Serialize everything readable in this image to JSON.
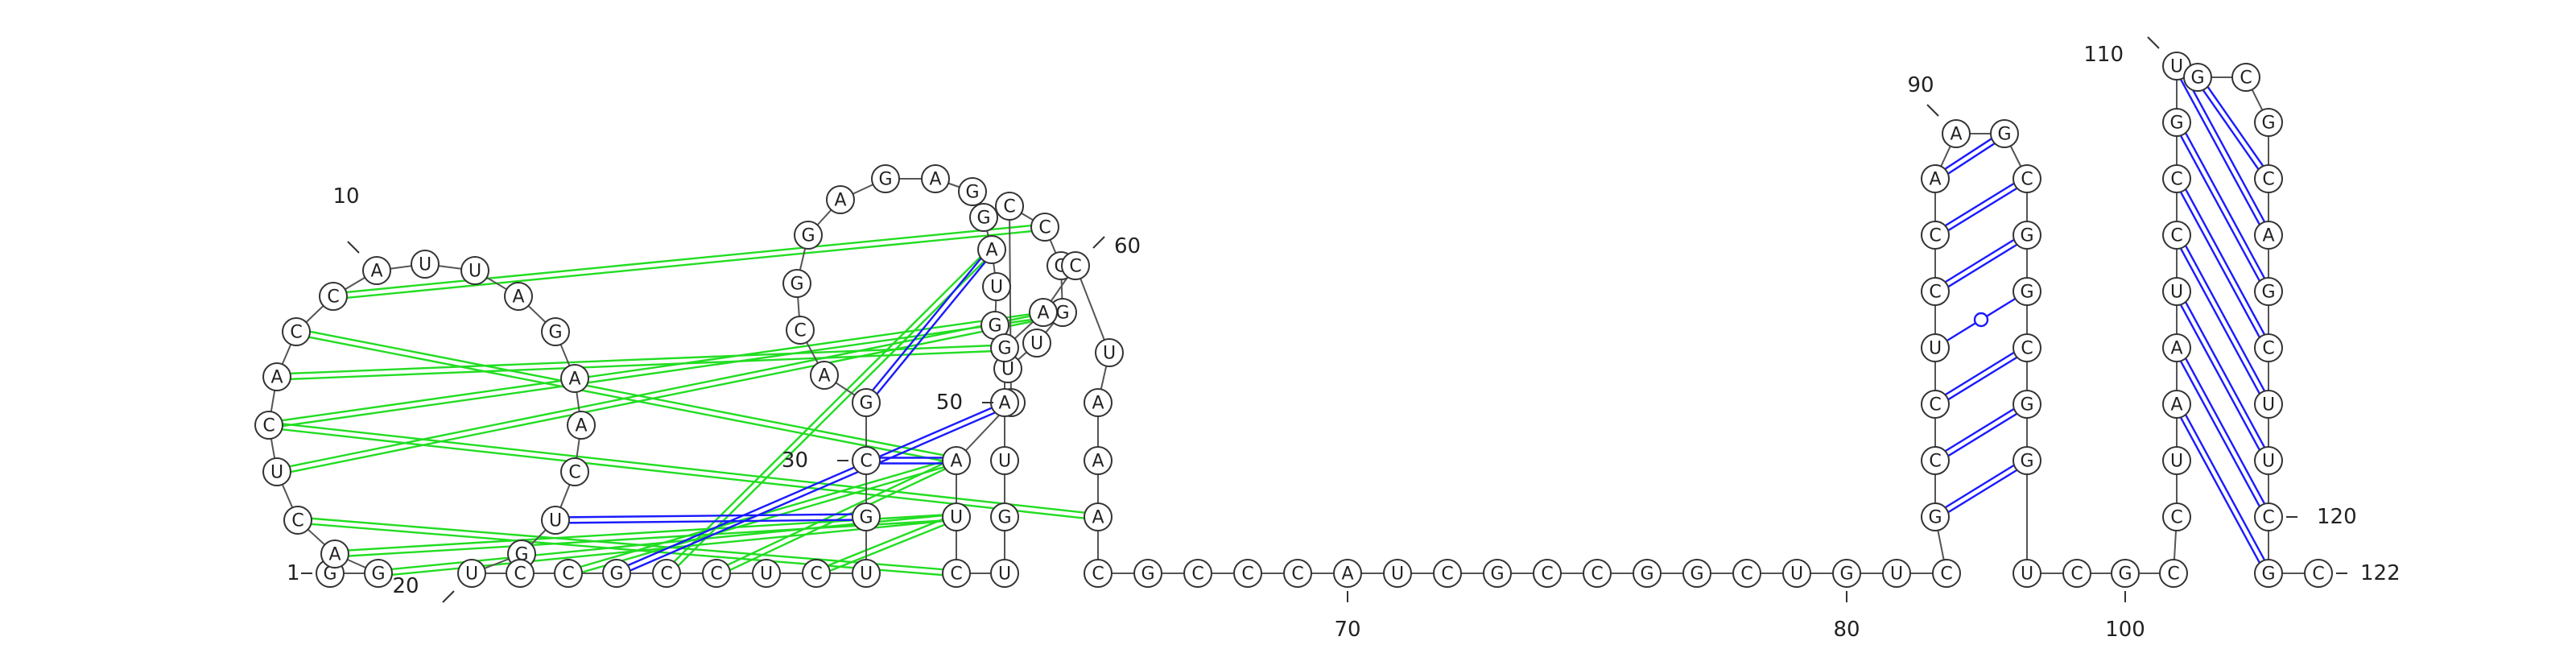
{
  "chart_data": {
    "type": "rna-secondary-structure",
    "length": 122,
    "sequence": "GGACUCACCAUUAGAACUGUCCGCCUCUGCGACGGAGAGGAUGUUGGCCCAUCUGUAGACUAAACGCCCAUCGCCGGCUGUCGCCUCCAAGCGGCGGUCGCCUAAUCCGUGCGCAGCUUCGC",
    "base_pairs": [
      [
        23,
        50
      ],
      [
        18,
        29
      ],
      [
        41,
        31
      ],
      [
        51,
        30
      ]
    ],
    "green_interactions": [
      [
        24,
        41
      ],
      [
        25,
        51
      ],
      [
        22,
        51
      ],
      [
        27,
        52
      ],
      [
        8,
        51
      ],
      [
        9,
        48
      ],
      [
        6,
        46
      ],
      [
        5,
        46
      ],
      [
        3,
        52
      ],
      [
        4,
        53
      ],
      [
        2,
        52
      ],
      [
        7,
        58
      ],
      [
        6,
        64
      ]
    ],
    "stem_positions": [
      [
        83,
        97
      ],
      [
        84,
        96
      ],
      [
        85,
        95
      ],
      [
        86,
        94
      ],
      [
        87,
        93
      ],
      [
        88,
        92
      ],
      [
        89,
        91
      ],
      [
        104,
        121
      ],
      [
        105,
        120
      ],
      [
        106,
        119
      ],
      [
        107,
        118
      ],
      [
        108,
        117
      ],
      [
        109,
        116
      ],
      [
        110,
        115
      ],
      [
        111,
        114
      ]
    ],
    "position_labels": [
      {
        "n": 1,
        "text": "1"
      },
      {
        "n": 10,
        "text": "10"
      },
      {
        "n": 20,
        "text": "20"
      },
      {
        "n": 30,
        "text": "30"
      },
      {
        "n": 50,
        "text": "50"
      },
      {
        "n": 60,
        "text": "60"
      },
      {
        "n": 70,
        "text": "70"
      },
      {
        "n": 80,
        "text": "80"
      },
      {
        "n": 90,
        "text": "90"
      },
      {
        "n": 100,
        "text": "100"
      },
      {
        "n": 110,
        "text": "110"
      },
      {
        "n": 120,
        "text": "120"
      },
      {
        "n": 122,
        "text": "122"
      }
    ],
    "colors": {
      "canonical_pair": "#1a1aff",
      "noncanonical_interaction": "#22dd22",
      "backbone": "#555555",
      "nucleotide_outline": "#333333"
    }
  }
}
